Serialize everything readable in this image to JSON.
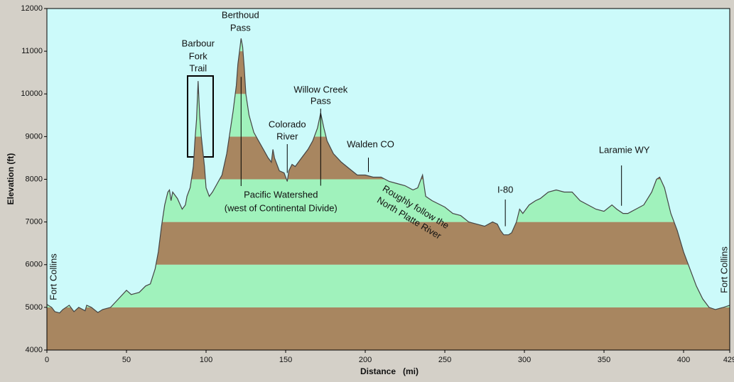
{
  "chart_data": {
    "type": "area",
    "xlabel": "Distance   (mi)",
    "ylabel": "Elevation (ft)",
    "xlim": [
      0,
      429
    ],
    "ylim": [
      4000,
      12000
    ],
    "xticks": [
      0,
      50,
      100,
      150,
      200,
      250,
      300,
      350,
      400,
      429
    ],
    "yticks": [
      4000,
      5000,
      6000,
      7000,
      8000,
      9000,
      10000,
      11000,
      12000
    ],
    "background": "#ccfafa",
    "band_colors": [
      "#a88660",
      "#a0f2bc"
    ],
    "line_color": "#444444",
    "x": [
      0,
      3,
      5,
      8,
      10,
      14,
      17,
      20,
      24,
      25,
      28,
      32,
      35,
      40,
      45,
      50,
      53,
      58,
      62,
      65,
      68,
      70,
      72,
      74,
      76,
      77,
      78,
      79,
      82,
      85,
      87,
      88,
      90,
      92,
      93,
      94,
      95,
      96,
      97,
      99,
      100,
      102,
      104,
      107,
      110,
      113,
      115,
      117,
      119,
      120,
      121,
      122,
      123,
      124,
      125,
      127,
      130,
      133,
      136,
      139,
      141,
      142,
      143,
      146,
      149,
      151,
      152,
      154,
      156,
      160,
      164,
      167,
      170,
      172,
      174,
      176,
      180,
      185,
      190,
      195,
      200,
      205,
      210,
      215,
      220,
      225,
      230,
      233,
      235,
      236,
      238,
      242,
      250,
      255,
      260,
      265,
      270,
      275,
      280,
      283,
      285,
      287,
      290,
      292,
      295,
      297,
      299,
      303,
      307,
      310,
      315,
      320,
      325,
      330,
      335,
      340,
      345,
      350,
      355,
      358,
      362,
      365,
      370,
      375,
      380,
      383,
      385,
      388,
      392,
      396,
      400,
      404,
      408,
      412,
      416,
      420,
      425,
      429
    ],
    "values": [
      5070,
      5000,
      4900,
      4870,
      4950,
      5050,
      4900,
      5000,
      4920,
      5050,
      5000,
      4880,
      4950,
      5000,
      5200,
      5400,
      5300,
      5350,
      5500,
      5550,
      5900,
      6300,
      6900,
      7400,
      7700,
      7750,
      7500,
      7700,
      7550,
      7300,
      7400,
      7600,
      7800,
      8300,
      8900,
      9400,
      10300,
      9500,
      9000,
      8300,
      7800,
      7600,
      7700,
      7900,
      8100,
      8600,
      9100,
      9600,
      10200,
      10700,
      11000,
      11300,
      11100,
      10600,
      10000,
      9500,
      9100,
      8900,
      8700,
      8500,
      8400,
      8700,
      8500,
      8200,
      8150,
      7950,
      8200,
      8350,
      8300,
      8500,
      8700,
      8900,
      9200,
      9550,
      9200,
      8900,
      8600,
      8400,
      8250,
      8100,
      8100,
      8050,
      8050,
      7950,
      7900,
      7850,
      7750,
      7800,
      8000,
      8100,
      7600,
      7500,
      7350,
      7200,
      7150,
      7000,
      6950,
      6900,
      7000,
      6950,
      6800,
      6700,
      6700,
      6750,
      7000,
      7300,
      7200,
      7400,
      7500,
      7550,
      7700,
      7750,
      7700,
      7700,
      7500,
      7400,
      7300,
      7250,
      7400,
      7300,
      7200,
      7200,
      7300,
      7400,
      7700,
      8000,
      8050,
      7800,
      7200,
      6800,
      6300,
      5900,
      5500,
      5200,
      5000,
      4950,
      5000,
      5050
    ],
    "annotations": [
      {
        "lines": [
          "Barbour",
          "Fork",
          "Trail"
        ],
        "x": 95,
        "y": 10300
      },
      {
        "lines": [
          "Berthoud",
          "Pass"
        ],
        "x": 122,
        "y": 11300
      },
      {
        "lines": [
          "Colorado",
          "River"
        ],
        "x": 151,
        "y": 8150
      },
      {
        "lines": [
          "Willow Creek",
          "Pass"
        ],
        "x": 172,
        "y": 7850
      },
      {
        "lines": [
          "Walden CO"
        ],
        "x": 202,
        "y": 8170
      },
      {
        "lines": [
          "Pacific Watershed",
          "(west of Continental Divide)"
        ],
        "x": 122,
        "y": 10400
      },
      {
        "lines": [
          "Roughly follow the",
          "North Platte River"
        ],
        "x": 260,
        "y": 6900
      },
      {
        "lines": [
          "I-80"
        ],
        "x": 288,
        "y": 6900
      },
      {
        "lines": [
          "Laramie WY"
        ],
        "x": 361,
        "y": 7380
      },
      {
        "lines": [
          "Fort Collins"
        ],
        "x": 0,
        "y": 5500
      },
      {
        "lines": [
          "Fort Collins"
        ],
        "x": 429,
        "y": 5700
      }
    ]
  }
}
